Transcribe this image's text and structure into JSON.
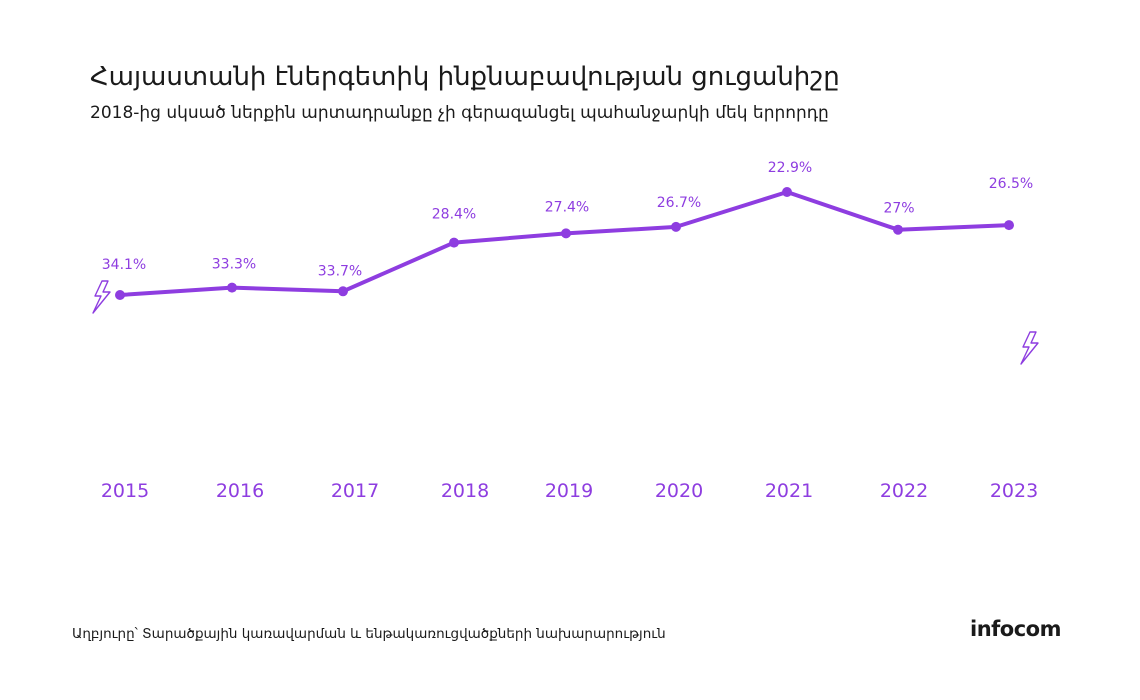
{
  "header": {
    "title": "Հայաստանի էներգետիկ ինքնաբավության ցուցանիշը",
    "subtitle": "2018-ից սկսած ներքին արտադրանքը չի գերազանցել պահանջարկի մեկ երրորդը"
  },
  "chart_data": {
    "type": "line",
    "title": "Հայաստանի էներգետիկ ինքնաբավության ցուցանիշը",
    "subtitle": "2018-ից սկսած ներքին արտադրանքը չի գերազանցել պահանջարկի մեկ երրորդը",
    "categories": [
      "2015",
      "2016",
      "2017",
      "2018",
      "2019",
      "2020",
      "2021",
      "2022",
      "2023"
    ],
    "values": [
      34.1,
      33.3,
      33.7,
      28.4,
      27.4,
      26.7,
      22.9,
      27,
      26.5
    ],
    "data_labels": [
      "34.1%",
      "33.3%",
      "33.7%",
      "28.4%",
      "27.4%",
      "26.7%",
      "22.9%",
      "27%",
      "26.5%"
    ],
    "xlabel": "",
    "ylabel": "",
    "grid": false,
    "legend": "none",
    "line_color": "#8e3de0",
    "label_color": "#8e3de0",
    "decorations": [
      "lightning-icon",
      "lightning-icon"
    ]
  },
  "footer": {
    "source": "Աղբյուրը՝ Տարածքային կառավարման և ենթակառուցվածքների նախարարություն",
    "logo": "infocom"
  }
}
